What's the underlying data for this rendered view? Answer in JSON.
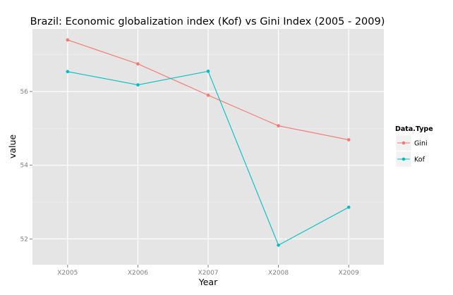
{
  "chart_data": {
    "type": "line",
    "title": "Brazil: Economic globalization index (Kof) vs Gini Index (2005 - 2009)",
    "xlabel": "Year",
    "ylabel": "value",
    "categories": [
      "X2005",
      "X2006",
      "X2007",
      "X2008",
      "X2009"
    ],
    "y_ticks": [
      52,
      54,
      56
    ],
    "ylim": [
      51.3,
      57.7
    ],
    "grid": true,
    "legend": {
      "title": "Data.Type",
      "position": "right"
    },
    "series": [
      {
        "name": "Gini",
        "color": "#F8766D",
        "values": [
          57.4,
          56.75,
          55.9,
          55.07,
          54.69
        ]
      },
      {
        "name": "Kof",
        "color": "#00BFC4",
        "values": [
          56.54,
          56.18,
          56.55,
          51.83,
          52.86
        ]
      }
    ]
  }
}
